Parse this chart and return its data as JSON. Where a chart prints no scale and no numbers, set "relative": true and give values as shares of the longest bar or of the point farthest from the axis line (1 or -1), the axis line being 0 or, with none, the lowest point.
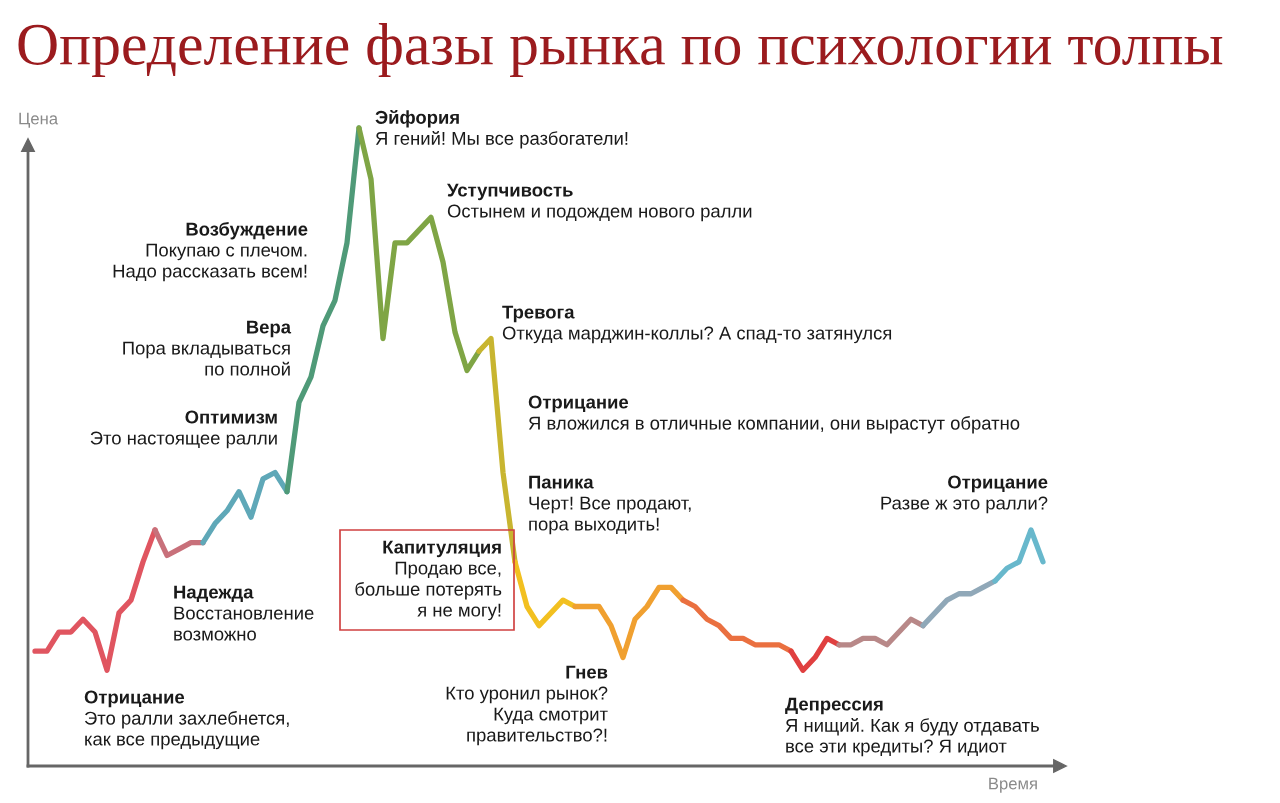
{
  "chart_data": {
    "type": "line",
    "title": "Определение фазы рынка по психологии толпы",
    "xlabel": "Время",
    "ylabel": "Цена",
    "relative": true,
    "marker": "none",
    "line_style": "solid",
    "categories": [
      null,
      null,
      null,
      null,
      null,
      null,
      null,
      null,
      null,
      null,
      null,
      null,
      null,
      null,
      null,
      null,
      null,
      null,
      null,
      null,
      null,
      null,
      null,
      null,
      null,
      null,
      null,
      null,
      null,
      null,
      null,
      null,
      null,
      null,
      null,
      null,
      null,
      null,
      null,
      null,
      null,
      null,
      null,
      null,
      null,
      null,
      null,
      null,
      null,
      null,
      null,
      null,
      null,
      null,
      null,
      null,
      null,
      null,
      null,
      null,
      null,
      null,
      null,
      null,
      null,
      null,
      null,
      null,
      null,
      null,
      null,
      null,
      null,
      null,
      null,
      null,
      null,
      null,
      null,
      null,
      null,
      null,
      null,
      null,
      null
    ],
    "series": [
      {
        "color": "#e05560",
        "values": [
          0.18,
          0.18,
          0.21,
          0.21,
          0.23,
          0.21,
          0.15,
          0.24,
          0.26,
          0.32,
          0.37,
          null,
          null,
          null,
          null,
          null,
          null,
          null,
          null,
          null,
          null,
          null,
          null,
          null,
          null,
          null,
          null,
          null,
          null,
          null,
          null,
          null,
          null,
          null,
          null,
          null,
          null,
          null,
          null,
          null,
          null,
          null,
          null,
          null,
          null,
          null,
          null,
          null,
          null,
          null,
          null,
          null,
          null,
          null,
          null,
          null,
          null,
          null,
          null,
          null,
          null,
          null,
          null,
          null,
          null,
          null,
          null,
          null,
          null,
          null,
          null,
          null,
          null,
          null,
          null,
          null,
          null,
          null,
          null,
          null,
          null,
          null,
          null,
          null,
          null
        ]
      },
      {
        "color": "#c8707a",
        "values": [
          null,
          null,
          null,
          null,
          null,
          null,
          null,
          null,
          null,
          null,
          0.37,
          0.33,
          0.34,
          0.35,
          0.35,
          null,
          null,
          null,
          null,
          null,
          null,
          null,
          null,
          null,
          null,
          null,
          null,
          null,
          null,
          null,
          null,
          null,
          null,
          null,
          null,
          null,
          null,
          null,
          null,
          null,
          null,
          null,
          null,
          null,
          null,
          null,
          null,
          null,
          null,
          null,
          null,
          null,
          null,
          null,
          null,
          null,
          null,
          null,
          null,
          null,
          null,
          null,
          null,
          null,
          null,
          null,
          null,
          null,
          null,
          null,
          null,
          null,
          null,
          null,
          null,
          null,
          null,
          null,
          null,
          null,
          null,
          null,
          null,
          null,
          null
        ]
      },
      {
        "color": "#5fa8b8",
        "values": [
          null,
          null,
          null,
          null,
          null,
          null,
          null,
          null,
          null,
          null,
          null,
          null,
          null,
          null,
          0.35,
          0.38,
          0.4,
          0.43,
          0.39,
          0.45,
          0.46,
          0.43,
          null,
          null,
          null,
          null,
          null,
          null,
          null,
          null,
          null,
          null,
          null,
          null,
          null,
          null,
          null,
          null,
          null,
          null,
          null,
          null,
          null,
          null,
          null,
          null,
          null,
          null,
          null,
          null,
          null,
          null,
          null,
          null,
          null,
          null,
          null,
          null,
          null,
          null,
          null,
          null,
          null,
          null,
          null,
          null,
          null,
          null,
          null,
          null,
          null,
          null,
          null,
          null,
          null,
          null,
          null,
          null,
          null,
          null,
          null,
          null,
          null,
          null,
          null
        ]
      },
      {
        "color": "#4f9a78",
        "values": [
          null,
          null,
          null,
          null,
          null,
          null,
          null,
          null,
          null,
          null,
          null,
          null,
          null,
          null,
          null,
          null,
          null,
          null,
          null,
          null,
          null,
          0.43,
          0.57,
          0.61,
          0.69,
          0.73,
          0.82,
          1,
          null,
          null,
          null,
          null,
          null,
          null,
          null,
          null,
          null,
          null,
          null,
          null,
          null,
          null,
          null,
          null,
          null,
          null,
          null,
          null,
          null,
          null,
          null,
          null,
          null,
          null,
          null,
          null,
          null,
          null,
          null,
          null,
          null,
          null,
          null,
          null,
          null,
          null,
          null,
          null,
          null,
          null,
          null,
          null,
          null,
          null,
          null,
          null,
          null,
          null,
          null,
          null,
          null,
          null,
          null,
          null,
          null
        ]
      },
      {
        "color": "#7fa545",
        "values": [
          null,
          null,
          null,
          null,
          null,
          null,
          null,
          null,
          null,
          null,
          null,
          null,
          null,
          null,
          null,
          null,
          null,
          null,
          null,
          null,
          null,
          null,
          null,
          null,
          null,
          null,
          null,
          1,
          0.92,
          0.67,
          0.82,
          0.82,
          0.84,
          0.86,
          0.79,
          0.68,
          0.62,
          0.65,
          null,
          null,
          null,
          null,
          null,
          null,
          null,
          null,
          null,
          null,
          null,
          null,
          null,
          null,
          null,
          null,
          null,
          null,
          null,
          null,
          null,
          null,
          null,
          null,
          null,
          null,
          null,
          null,
          null,
          null,
          null,
          null,
          null,
          null,
          null,
          null,
          null,
          null,
          null,
          null,
          null,
          null,
          null,
          null,
          null,
          null,
          null
        ]
      },
      {
        "color": "#c8b530",
        "values": [
          null,
          null,
          null,
          null,
          null,
          null,
          null,
          null,
          null,
          null,
          null,
          null,
          null,
          null,
          null,
          null,
          null,
          null,
          null,
          null,
          null,
          null,
          null,
          null,
          null,
          null,
          null,
          null,
          null,
          null,
          null,
          null,
          null,
          null,
          null,
          null,
          null,
          0.65,
          0.67,
          0.46,
          0.32,
          null,
          null,
          null,
          null,
          null,
          null,
          null,
          null,
          null,
          null,
          null,
          null,
          null,
          null,
          null,
          null,
          null,
          null,
          null,
          null,
          null,
          null,
          null,
          null,
          null,
          null,
          null,
          null,
          null,
          null,
          null,
          null,
          null,
          null,
          null,
          null,
          null,
          null,
          null,
          null,
          null,
          null,
          null,
          null
        ]
      },
      {
        "color": "#f2c020",
        "values": [
          null,
          null,
          null,
          null,
          null,
          null,
          null,
          null,
          null,
          null,
          null,
          null,
          null,
          null,
          null,
          null,
          null,
          null,
          null,
          null,
          null,
          null,
          null,
          null,
          null,
          null,
          null,
          null,
          null,
          null,
          null,
          null,
          null,
          null,
          null,
          null,
          null,
          null,
          null,
          null,
          0.32,
          0.25,
          0.22,
          0.24,
          0.26,
          0.25,
          null,
          null,
          null,
          null,
          null,
          null,
          null,
          null,
          null,
          null,
          null,
          null,
          null,
          null,
          null,
          null,
          null,
          null,
          null,
          null,
          null,
          null,
          null,
          null,
          null,
          null,
          null,
          null,
          null,
          null,
          null,
          null,
          null,
          null,
          null,
          null,
          null,
          null,
          null
        ]
      },
      {
        "color": "#f0a030",
        "values": [
          null,
          null,
          null,
          null,
          null,
          null,
          null,
          null,
          null,
          null,
          null,
          null,
          null,
          null,
          null,
          null,
          null,
          null,
          null,
          null,
          null,
          null,
          null,
          null,
          null,
          null,
          null,
          null,
          null,
          null,
          null,
          null,
          null,
          null,
          null,
          null,
          null,
          null,
          null,
          null,
          null,
          null,
          null,
          null,
          null,
          0.25,
          0.25,
          0.25,
          0.22,
          0.17,
          0.23,
          0.25,
          0.28,
          0.28,
          0.26,
          null,
          null,
          null,
          null,
          null,
          null,
          null,
          null,
          null,
          null,
          null,
          null,
          null,
          null,
          null,
          null,
          null,
          null,
          null,
          null,
          null,
          null,
          null,
          null,
          null,
          null,
          null,
          null,
          null,
          null
        ]
      },
      {
        "color": "#ea7040",
        "values": [
          null,
          null,
          null,
          null,
          null,
          null,
          null,
          null,
          null,
          null,
          null,
          null,
          null,
          null,
          null,
          null,
          null,
          null,
          null,
          null,
          null,
          null,
          null,
          null,
          null,
          null,
          null,
          null,
          null,
          null,
          null,
          null,
          null,
          null,
          null,
          null,
          null,
          null,
          null,
          null,
          null,
          null,
          null,
          null,
          null,
          null,
          null,
          null,
          null,
          null,
          null,
          null,
          null,
          null,
          0.26,
          0.25,
          0.23,
          0.22,
          0.2,
          0.2,
          0.19,
          0.19,
          0.19,
          0.18,
          null,
          null,
          null,
          null,
          null,
          null,
          null,
          null,
          null,
          null,
          null,
          null,
          null,
          null,
          null,
          null,
          null,
          null,
          null,
          null,
          null
        ]
      },
      {
        "color": "#e04040",
        "values": [
          null,
          null,
          null,
          null,
          null,
          null,
          null,
          null,
          null,
          null,
          null,
          null,
          null,
          null,
          null,
          null,
          null,
          null,
          null,
          null,
          null,
          null,
          null,
          null,
          null,
          null,
          null,
          null,
          null,
          null,
          null,
          null,
          null,
          null,
          null,
          null,
          null,
          null,
          null,
          null,
          null,
          null,
          null,
          null,
          null,
          null,
          null,
          null,
          null,
          null,
          null,
          null,
          null,
          null,
          null,
          null,
          null,
          null,
          null,
          null,
          null,
          null,
          null,
          0.18,
          0.15,
          0.17,
          0.2,
          0.19,
          null,
          null,
          null,
          null,
          null,
          null,
          null,
          null,
          null,
          null,
          null,
          null,
          null,
          null,
          null,
          null,
          null
        ]
      },
      {
        "color": "#b88888",
        "values": [
          null,
          null,
          null,
          null,
          null,
          null,
          null,
          null,
          null,
          null,
          null,
          null,
          null,
          null,
          null,
          null,
          null,
          null,
          null,
          null,
          null,
          null,
          null,
          null,
          null,
          null,
          null,
          null,
          null,
          null,
          null,
          null,
          null,
          null,
          null,
          null,
          null,
          null,
          null,
          null,
          null,
          null,
          null,
          null,
          null,
          null,
          null,
          null,
          null,
          null,
          null,
          null,
          null,
          null,
          null,
          null,
          null,
          null,
          null,
          null,
          null,
          null,
          null,
          null,
          null,
          null,
          null,
          0.19,
          0.19,
          0.2,
          0.2,
          0.19,
          0.21,
          0.23,
          0.22,
          null,
          null,
          null,
          null,
          null,
          null,
          null,
          null,
          null,
          null
        ]
      },
      {
        "color": "#90a8b8",
        "values": [
          null,
          null,
          null,
          null,
          null,
          null,
          null,
          null,
          null,
          null,
          null,
          null,
          null,
          null,
          null,
          null,
          null,
          null,
          null,
          null,
          null,
          null,
          null,
          null,
          null,
          null,
          null,
          null,
          null,
          null,
          null,
          null,
          null,
          null,
          null,
          null,
          null,
          null,
          null,
          null,
          null,
          null,
          null,
          null,
          null,
          null,
          null,
          null,
          null,
          null,
          null,
          null,
          null,
          null,
          null,
          null,
          null,
          null,
          null,
          null,
          null,
          null,
          null,
          null,
          null,
          null,
          null,
          null,
          null,
          null,
          null,
          null,
          null,
          null,
          0.22,
          0.24,
          0.26,
          0.27,
          0.27,
          0.28,
          0.29,
          null,
          null,
          null,
          null
        ]
      },
      {
        "color": "#68b8cc",
        "values": [
          null,
          null,
          null,
          null,
          null,
          null,
          null,
          null,
          null,
          null,
          null,
          null,
          null,
          null,
          null,
          null,
          null,
          null,
          null,
          null,
          null,
          null,
          null,
          null,
          null,
          null,
          null,
          null,
          null,
          null,
          null,
          null,
          null,
          null,
          null,
          null,
          null,
          null,
          null,
          null,
          null,
          null,
          null,
          null,
          null,
          null,
          null,
          null,
          null,
          null,
          null,
          null,
          null,
          null,
          null,
          null,
          null,
          null,
          null,
          null,
          null,
          null,
          null,
          null,
          null,
          null,
          null,
          null,
          null,
          null,
          null,
          null,
          null,
          null,
          null,
          null,
          null,
          null,
          null,
          null,
          0.29,
          0.31,
          0.32,
          0.37,
          0.32
        ]
      }
    ],
    "annotations": [
      "Отрицание\nЭто ралли захлебнется,\nкак все предыдущие",
      "Надежда\nВосстановление\nвозможно",
      "Оптимизм\nЭто настоящее ралли",
      "Вера\nПора вкладываться\nпо полной",
      "Возбуждение\nПокупаю с плечом.\nНадо рассказать всем!",
      "Эйфория\nЯ гений! Мы все разбогатели!",
      "Уступчивость\nОстынем и подождем нового ралли",
      "Тревога\nОткуда марджин-коллы? А спад-то затянулся",
      "Отрицание\nЯ вложился в отличные компании, они вырастут обратно",
      "Паника\nЧерт! Все продают,\nпора выходить!",
      "Капитуляция\nПродаю все,\nбольше потерять\nя не могу!",
      "Гнев\nКто уронил рынок?\nКуда смотрит\nправительство?!",
      "Депрессия\nЯ нищий. Как я буду отдавать\nвсе эти кредиты? Я идиот",
      "Отрицание\nРазве ж это ралли?"
    ]
  }
}
